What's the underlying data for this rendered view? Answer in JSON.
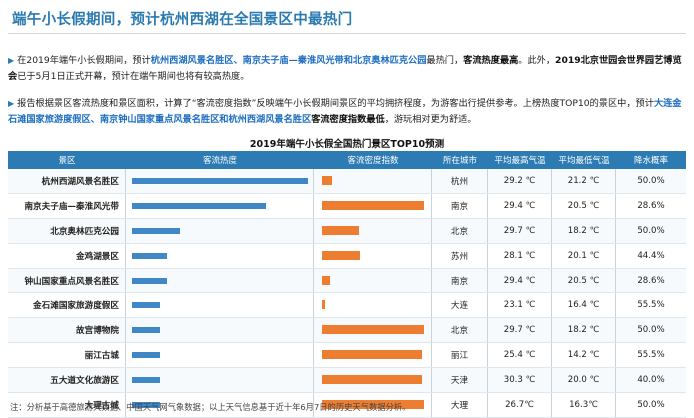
{
  "title": "端午小长假期间，预计杭州西湖在全国景区中最热门",
  "para1": {
    "t1": "在2019年端午小长假期间，预计",
    "h1": "杭州西湖风景名胜区、南京夫子庙—秦淮风光带和北京奥林匹克公园",
    "t2": "最热门，",
    "b1": "客流热度最高",
    "t3": "。此外，",
    "b2": "2019北京世园会世界园艺博览会",
    "t4": "已于5月1日正式开幕，预计在端午期间也将有较高热度。"
  },
  "para2": {
    "t1": "报告根据景区客流热度和景区面积，计算了“客流密度指数”反映端午小长假期间景区的平均拥挤程度，为游客出行提供参考。上榜热度TOP10的景区中，预计",
    "h1": "大连金石滩国家旅游度假区、南京钟山国家重点风景名胜区和杭州西湖风景名胜区",
    "b1": "客流密度指数最低",
    "t2": "，游玩相对更为舒适。"
  },
  "table_title": "2019年端午小长假全国热门景区TOP10预测",
  "headers": {
    "name": "景区",
    "heat": "客流热度",
    "density": "客流密度指数",
    "city": "所在城市",
    "max": "平均最高气温",
    "min": "平均最低气温",
    "rain": "降水概率"
  },
  "colors": {
    "header_bg": "#2d7bb3",
    "heat_bar": "#3f88c5",
    "density_bar": "#ed7d31",
    "title": "#2a7ab0"
  },
  "rows": [
    {
      "name": "杭州西湖风景名胜区",
      "heat": 1.0,
      "density": 0.1,
      "city": "杭州",
      "max": "29.2 ℃",
      "min": "21.2 ℃",
      "rain": "50.0%"
    },
    {
      "name": "南京夫子庙—秦淮风光带",
      "heat": 0.76,
      "density": 1.0,
      "city": "南京",
      "max": "29.4 ℃",
      "min": "20.5 ℃",
      "rain": "28.6%"
    },
    {
      "name": "北京奥林匹克公园",
      "heat": 0.27,
      "density": 0.36,
      "city": "北京",
      "max": "29.7 ℃",
      "min": "18.2 ℃",
      "rain": "50.0%"
    },
    {
      "name": "金鸡湖景区",
      "heat": 0.2,
      "density": 0.37,
      "city": "苏州",
      "max": "28.1 ℃",
      "min": "20.1 ℃",
      "rain": "44.4%"
    },
    {
      "name": "钟山国家重点风景名胜区",
      "heat": 0.2,
      "density": 0.08,
      "city": "南京",
      "max": "29.4 ℃",
      "min": "20.5 ℃",
      "rain": "28.6%"
    },
    {
      "name": "金石滩国家旅游度假区",
      "heat": 0.16,
      "density": 0.03,
      "city": "大连",
      "max": "23.1 ℃",
      "min": "16.4 ℃",
      "rain": "55.5%"
    },
    {
      "name": "故宫博物院",
      "heat": 0.16,
      "density": 1.0,
      "city": "北京",
      "max": "29.7 ℃",
      "min": "18.2 ℃",
      "rain": "50.0%"
    },
    {
      "name": "丽江古城",
      "heat": 0.16,
      "density": 0.98,
      "city": "丽江",
      "max": "25.4 ℃",
      "min": "14.2 ℃",
      "rain": "55.5%"
    },
    {
      "name": "五大道文化旅游区",
      "heat": 0.16,
      "density": 0.98,
      "city": "天津",
      "max": "30.3 ℃",
      "min": "20.0 ℃",
      "rain": "40.0%"
    },
    {
      "name": "大理古城",
      "heat": 0.16,
      "density": 1.0,
      "city": "大理",
      "max": "26.7℃",
      "min": "16.3℃",
      "rain": "50.0%"
    }
  ],
  "note": "注：分析基于高德旅游大数据、中国天气网气象数据；以上天气信息基于近十年6月7日的历史天气数据分析。"
}
